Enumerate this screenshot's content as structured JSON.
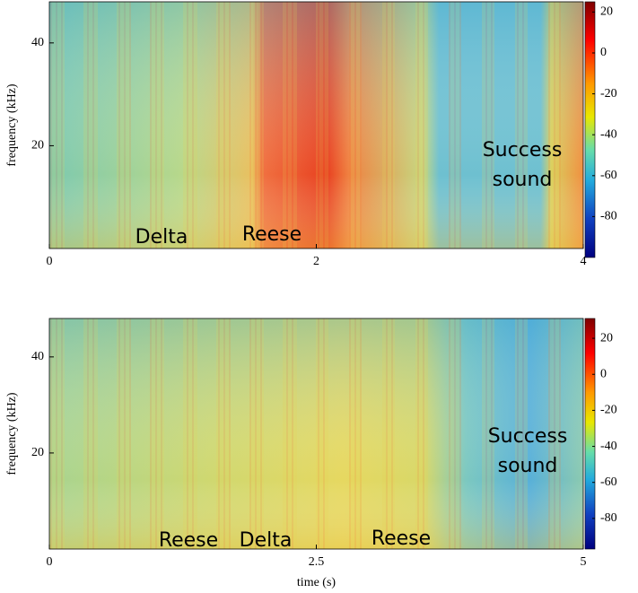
{
  "chart_data": [
    {
      "type": "spectrogram",
      "ylabel": "frequency (kHz)",
      "xlim": [
        0,
        4
      ],
      "xticks": [
        0,
        2,
        4
      ],
      "ylim": [
        0,
        48
      ],
      "yticks": [
        20,
        40
      ],
      "clim": [
        -100,
        25
      ],
      "cticks": [
        20,
        0,
        -20,
        -40,
        -60,
        -80
      ],
      "annotations": [
        "Delta",
        "Reese",
        "Success",
        "sound"
      ]
    },
    {
      "type": "spectrogram",
      "xlabel": "time (s)",
      "ylabel": "frequency (kHz)",
      "xlim": [
        0,
        5
      ],
      "xticks": [
        0,
        2.5,
        5
      ],
      "ylim": [
        0,
        48
      ],
      "yticks": [
        20,
        40
      ],
      "clim": [
        -97,
        31
      ],
      "cticks": [
        20,
        0,
        -20,
        -40,
        -60,
        -80
      ],
      "annotations": [
        "Reese",
        "Delta",
        "Reese",
        "Success",
        "sound"
      ]
    }
  ]
}
